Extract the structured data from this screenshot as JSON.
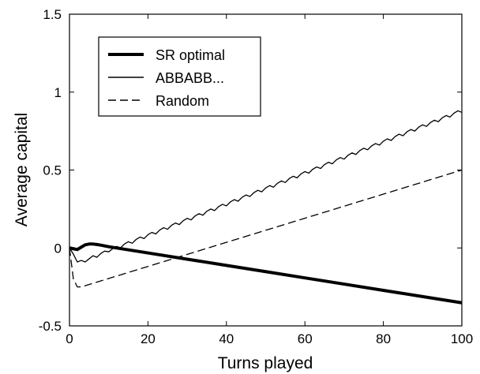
{
  "chart_data": {
    "type": "line",
    "title": "",
    "xlabel": "Turns played",
    "ylabel": "Average capital",
    "xlim": [
      0,
      100
    ],
    "ylim": [
      -0.5,
      1.5
    ],
    "xticks": [
      0,
      20,
      40,
      60,
      80,
      100
    ],
    "yticks": [
      -0.5,
      0,
      0.5,
      1,
      1.5
    ],
    "xtick_labels": [
      "0",
      "20",
      "40",
      "60",
      "80",
      "100"
    ],
    "ytick_labels": [
      "-0.5",
      "0",
      "0.5",
      "1",
      "1.5"
    ],
    "grid": false,
    "legend_position": "top-left",
    "series": [
      {
        "name": "SR optimal",
        "style": "solid-thick",
        "color": "#000000",
        "x": [
          0,
          1,
          2,
          3,
          4,
          5,
          6,
          7,
          8,
          9,
          10,
          20,
          30,
          40,
          50,
          60,
          70,
          80,
          90,
          100
        ],
        "y": [
          0.0,
          -0.005,
          -0.01,
          0.005,
          0.02,
          0.025,
          0.025,
          0.022,
          0.018,
          0.013,
          0.008,
          -0.032,
          -0.072,
          -0.112,
          -0.152,
          -0.192,
          -0.232,
          -0.272,
          -0.312,
          -0.352
        ]
      },
      {
        "name": "ABBABB...",
        "style": "solid-thin",
        "color": "#000000",
        "x": [
          0,
          1,
          2,
          3,
          4,
          5,
          6,
          7,
          8,
          9,
          10,
          11,
          12,
          13,
          14,
          15,
          16,
          17,
          18,
          19,
          20,
          21,
          22,
          23,
          24,
          25,
          26,
          27,
          28,
          29,
          30,
          31,
          32,
          33,
          34,
          35,
          36,
          37,
          38,
          39,
          40,
          41,
          42,
          43,
          44,
          45,
          46,
          47,
          48,
          49,
          50,
          51,
          52,
          53,
          54,
          55,
          56,
          57,
          58,
          59,
          60,
          61,
          62,
          63,
          64,
          65,
          66,
          67,
          68,
          69,
          70,
          71,
          72,
          73,
          74,
          75,
          76,
          77,
          78,
          79,
          80,
          81,
          82,
          83,
          84,
          85,
          86,
          87,
          88,
          89,
          90,
          91,
          92,
          93,
          94,
          95,
          96,
          97,
          98,
          99,
          100
        ],
        "y": [
          0,
          -0.04,
          -0.09,
          -0.08,
          -0.09,
          -0.07,
          -0.05,
          -0.06,
          -0.035,
          -0.02,
          -0.025,
          -0.005,
          0.01,
          0.0,
          0.025,
          0.04,
          0.03,
          0.055,
          0.07,
          0.06,
          0.085,
          0.1,
          0.09,
          0.115,
          0.13,
          0.12,
          0.145,
          0.16,
          0.15,
          0.175,
          0.19,
          0.18,
          0.205,
          0.22,
          0.21,
          0.235,
          0.25,
          0.24,
          0.265,
          0.28,
          0.27,
          0.295,
          0.31,
          0.3,
          0.325,
          0.34,
          0.33,
          0.355,
          0.37,
          0.36,
          0.385,
          0.4,
          0.39,
          0.415,
          0.43,
          0.42,
          0.445,
          0.46,
          0.45,
          0.475,
          0.49,
          0.48,
          0.505,
          0.52,
          0.51,
          0.535,
          0.55,
          0.54,
          0.565,
          0.58,
          0.57,
          0.595,
          0.61,
          0.6,
          0.625,
          0.64,
          0.63,
          0.655,
          0.67,
          0.66,
          0.685,
          0.7,
          0.69,
          0.715,
          0.73,
          0.72,
          0.745,
          0.76,
          0.75,
          0.775,
          0.79,
          0.78,
          0.805,
          0.82,
          0.81,
          0.835,
          0.85,
          0.84,
          0.865,
          0.88,
          0.87
        ]
      },
      {
        "name": "Random",
        "style": "dashed",
        "color": "#000000",
        "x": [
          0,
          1,
          2,
          3,
          100
        ],
        "y": [
          0.0,
          -0.2,
          -0.25,
          -0.25,
          0.5
        ]
      }
    ]
  }
}
